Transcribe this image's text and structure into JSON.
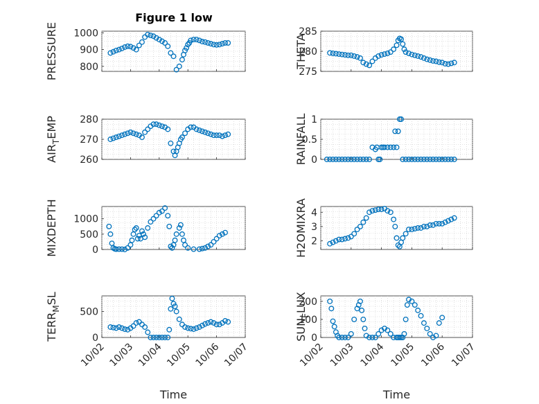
{
  "figure": {
    "title": "Figure 1 low"
  },
  "chart_data": [
    {
      "type": "scatter",
      "panel": "PRESSURE",
      "ylabel": "PRESSURE",
      "ylim": [
        770,
        1010
      ],
      "yticks": [
        800,
        900,
        1000
      ],
      "xlim": [
        0,
        5
      ],
      "xticks": [
        "10/02",
        "10/03",
        "10/04",
        "10/05",
        "10/06",
        "10/07"
      ],
      "xlabel": "",
      "grid": true,
      "x": [
        0.3,
        0.4,
        0.5,
        0.6,
        0.7,
        0.8,
        0.9,
        1.0,
        1.1,
        1.2,
        1.3,
        1.4,
        1.5,
        1.6,
        1.7,
        1.8,
        1.9,
        2.0,
        2.1,
        2.2,
        2.3,
        2.4,
        2.5,
        2.6,
        2.7,
        2.8,
        2.85,
        2.9,
        2.95,
        3.0,
        3.05,
        3.1,
        3.2,
        3.3,
        3.4,
        3.5,
        3.6,
        3.7,
        3.8,
        3.9,
        4.0,
        4.1,
        4.2,
        4.3,
        4.4
      ],
      "y": [
        880,
        887,
        895,
        900,
        907,
        915,
        920,
        918,
        910,
        900,
        925,
        945,
        975,
        990,
        985,
        980,
        970,
        960,
        950,
        940,
        920,
        880,
        860,
        780,
        800,
        840,
        870,
        895,
        910,
        930,
        940,
        955,
        960,
        960,
        955,
        948,
        945,
        940,
        935,
        930,
        928,
        930,
        935,
        940,
        940
      ]
    },
    {
      "type": "scatter",
      "panel": "THETA",
      "ylabel": "THETA",
      "ylim": [
        275,
        285
      ],
      "yticks": [
        275,
        280,
        285
      ],
      "xlim": [
        0,
        5
      ],
      "xticks": [
        "10/02",
        "10/03",
        "10/04",
        "10/05",
        "10/06",
        "10/07"
      ],
      "xlabel": "",
      "grid": true,
      "x": [
        0.3,
        0.4,
        0.5,
        0.6,
        0.7,
        0.8,
        0.9,
        1.0,
        1.1,
        1.2,
        1.3,
        1.4,
        1.5,
        1.6,
        1.7,
        1.8,
        1.9,
        2.0,
        2.1,
        2.2,
        2.3,
        2.4,
        2.5,
        2.55,
        2.6,
        2.65,
        2.7,
        2.75,
        2.8,
        2.9,
        3.0,
        3.1,
        3.2,
        3.3,
        3.4,
        3.5,
        3.6,
        3.7,
        3.8,
        3.9,
        4.0,
        4.1,
        4.2,
        4.3,
        4.4
      ],
      "y": [
        279.6,
        279.5,
        279.4,
        279.3,
        279.2,
        279.1,
        279.0,
        279.0,
        278.8,
        278.6,
        278.3,
        277.2,
        276.8,
        276.5,
        277.5,
        278.3,
        278.8,
        279.1,
        279.3,
        279.5,
        279.8,
        280.5,
        281.5,
        282.7,
        283.2,
        283.0,
        281.8,
        280.5,
        279.8,
        279.5,
        279.2,
        279.0,
        278.8,
        278.6,
        278.3,
        278.0,
        277.8,
        277.6,
        277.5,
        277.3,
        277.2,
        276.9,
        276.8,
        277.0,
        277.2
      ]
    },
    {
      "type": "scatter",
      "panel": "AIR_TEMP",
      "ylabel": "AIR_TEMP",
      "ylim": [
        260,
        280
      ],
      "yticks": [
        260,
        270,
        280
      ],
      "xlim": [
        0,
        5
      ],
      "xticks": [
        "10/02",
        "10/03",
        "10/04",
        "10/05",
        "10/06",
        "10/07"
      ],
      "xlabel": "",
      "grid": true,
      "x": [
        0.3,
        0.4,
        0.5,
        0.6,
        0.7,
        0.8,
        0.9,
        1.0,
        1.1,
        1.2,
        1.3,
        1.4,
        1.5,
        1.6,
        1.7,
        1.8,
        1.9,
        2.0,
        2.1,
        2.2,
        2.3,
        2.4,
        2.5,
        2.55,
        2.6,
        2.65,
        2.7,
        2.75,
        2.8,
        2.9,
        3.0,
        3.1,
        3.2,
        3.3,
        3.4,
        3.5,
        3.6,
        3.7,
        3.8,
        3.9,
        4.0,
        4.1,
        4.2,
        4.3,
        4.4
      ],
      "y": [
        270,
        270.5,
        271,
        271.5,
        272,
        272.5,
        273,
        273.5,
        273,
        272.5,
        272,
        271,
        273.5,
        275,
        276.5,
        277.5,
        277.5,
        277,
        276.5,
        276,
        275,
        268,
        264,
        262,
        264,
        266,
        268,
        270,
        271,
        273,
        275,
        276,
        276,
        275,
        274.5,
        274,
        273.5,
        273,
        272.5,
        272,
        272,
        272,
        271.5,
        272,
        272.5
      ]
    },
    {
      "type": "scatter",
      "panel": "RAINFALL",
      "ylabel": "RAINFALL",
      "ylim": [
        0,
        1
      ],
      "yticks": [
        0,
        0.5,
        1
      ],
      "xlim": [
        0,
        5
      ],
      "xticks": [
        "10/02",
        "10/03",
        "10/04",
        "10/05",
        "10/06",
        "10/07"
      ],
      "xlabel": "",
      "grid": true,
      "x": [
        0.2,
        0.3,
        0.4,
        0.5,
        0.6,
        0.7,
        0.8,
        0.9,
        1.0,
        1.1,
        1.2,
        1.3,
        1.4,
        1.5,
        1.6,
        1.7,
        1.8,
        1.85,
        1.9,
        1.95,
        2.0,
        2.05,
        2.1,
        2.2,
        2.3,
        2.4,
        2.45,
        2.5,
        2.55,
        2.6,
        2.65,
        2.7,
        2.8,
        2.9,
        3.0,
        3.1,
        3.2,
        3.3,
        3.4,
        3.5,
        3.6,
        3.7,
        3.8,
        3.9,
        4.0,
        4.1,
        4.2,
        4.3,
        4.4
      ],
      "y": [
        0,
        0,
        0,
        0,
        0,
        0,
        0,
        0,
        0,
        0,
        0,
        0,
        0,
        0,
        0,
        0.3,
        0.25,
        0.3,
        0,
        0,
        0.3,
        0.3,
        0.3,
        0.3,
        0.3,
        0.3,
        0.7,
        0.3,
        0.7,
        1.0,
        1.0,
        0,
        0,
        0,
        0,
        0,
        0,
        0,
        0,
        0,
        0,
        0,
        0,
        0,
        0,
        0,
        0,
        0,
        0
      ]
    },
    {
      "type": "scatter",
      "panel": "MIXDEPTH",
      "ylabel": "MIXDEPTH",
      "ylim": [
        0,
        1400
      ],
      "yticks": [
        0,
        500,
        1000
      ],
      "xlim": [
        0,
        5
      ],
      "xticks": [
        "10/02",
        "10/03",
        "10/04",
        "10/05",
        "10/06",
        "10/07"
      ],
      "xlabel": "",
      "grid": true,
      "x": [
        0.25,
        0.3,
        0.35,
        0.4,
        0.45,
        0.5,
        0.6,
        0.7,
        0.8,
        0.9,
        1.0,
        1.05,
        1.1,
        1.15,
        1.2,
        1.25,
        1.3,
        1.35,
        1.4,
        1.45,
        1.5,
        1.6,
        1.7,
        1.8,
        1.9,
        2.0,
        2.1,
        2.2,
        2.3,
        2.35,
        2.4,
        2.45,
        2.5,
        2.55,
        2.6,
        2.7,
        2.75,
        2.8,
        2.85,
        2.9,
        3.0,
        3.2,
        3.4,
        3.5,
        3.6,
        3.7,
        3.8,
        3.9,
        4.0,
        4.1,
        4.2,
        4.3
      ],
      "y": [
        750,
        500,
        200,
        50,
        20,
        10,
        10,
        10,
        0,
        50,
        150,
        300,
        500,
        650,
        700,
        350,
        450,
        350,
        600,
        500,
        400,
        700,
        900,
        1000,
        1100,
        1200,
        1250,
        1350,
        1100,
        750,
        100,
        50,
        150,
        300,
        500,
        700,
        800,
        500,
        300,
        150,
        50,
        10,
        10,
        30,
        50,
        100,
        150,
        250,
        350,
        450,
        500,
        550
      ]
    },
    {
      "type": "scatter",
      "panel": "H2OMIXRA",
      "ylabel": "H2OMIXRA",
      "ylim": [
        1.4,
        4.4
      ],
      "yticks": [
        2,
        3,
        4
      ],
      "xlim": [
        0,
        5
      ],
      "xticks": [
        "10/02",
        "10/03",
        "10/04",
        "10/05",
        "10/06",
        "10/07"
      ],
      "xlabel": "",
      "grid": true,
      "x": [
        0.3,
        0.4,
        0.5,
        0.6,
        0.7,
        0.8,
        0.9,
        1.0,
        1.1,
        1.2,
        1.3,
        1.4,
        1.5,
        1.6,
        1.7,
        1.8,
        1.9,
        2.0,
        2.1,
        2.2,
        2.3,
        2.4,
        2.45,
        2.5,
        2.55,
        2.6,
        2.65,
        2.7,
        2.8,
        2.9,
        3.0,
        3.1,
        3.2,
        3.3,
        3.4,
        3.5,
        3.6,
        3.7,
        3.8,
        3.9,
        4.0,
        4.1,
        4.2,
        4.3,
        4.4
      ],
      "y": [
        1.8,
        1.9,
        2.0,
        2.1,
        2.1,
        2.15,
        2.2,
        2.3,
        2.5,
        2.8,
        3.0,
        3.3,
        3.6,
        4.0,
        4.1,
        4.15,
        4.2,
        4.2,
        4.25,
        4.1,
        4.0,
        3.5,
        3.0,
        2.2,
        1.7,
        1.6,
        1.9,
        2.2,
        2.5,
        2.8,
        2.8,
        2.85,
        2.9,
        2.9,
        3.0,
        3.0,
        3.1,
        3.1,
        3.2,
        3.2,
        3.2,
        3.3,
        3.4,
        3.5,
        3.6
      ]
    },
    {
      "type": "scatter",
      "panel": "TERR_MSL",
      "ylabel": "TERR_MSL",
      "ylim": [
        0,
        800
      ],
      "yticks": [
        0,
        500
      ],
      "xlim": [
        0,
        5
      ],
      "xticks": [
        "10/02",
        "10/03",
        "10/04",
        "10/05",
        "10/06",
        "10/07"
      ],
      "xlabel": "Time",
      "grid": true,
      "x": [
        0.3,
        0.4,
        0.5,
        0.6,
        0.7,
        0.8,
        0.9,
        1.0,
        1.1,
        1.2,
        1.3,
        1.4,
        1.5,
        1.6,
        1.7,
        1.8,
        1.9,
        2.0,
        2.1,
        2.2,
        2.3,
        2.35,
        2.4,
        2.45,
        2.5,
        2.55,
        2.6,
        2.7,
        2.8,
        2.9,
        3.0,
        3.1,
        3.2,
        3.3,
        3.4,
        3.5,
        3.6,
        3.7,
        3.8,
        3.9,
        4.0,
        4.1,
        4.2,
        4.3,
        4.4
      ],
      "y": [
        200,
        190,
        180,
        200,
        180,
        160,
        150,
        180,
        220,
        280,
        300,
        250,
        200,
        100,
        0,
        0,
        0,
        0,
        0,
        0,
        0,
        150,
        550,
        750,
        650,
        600,
        500,
        350,
        250,
        200,
        180,
        170,
        160,
        180,
        200,
        230,
        260,
        280,
        300,
        280,
        250,
        250,
        280,
        320,
        300
      ]
    },
    {
      "type": "scatter",
      "panel": "SUN_FLUX",
      "ylabel": "SUN_FLUX",
      "ylim": [
        0,
        230
      ],
      "yticks": [
        0,
        100,
        200
      ],
      "xlim": [
        0,
        5
      ],
      "xticks": [
        "10/02",
        "10/03",
        "10/04",
        "10/05",
        "10/06",
        "10/07"
      ],
      "xlabel": "Time",
      "grid": true,
      "x": [
        0.3,
        0.35,
        0.4,
        0.45,
        0.5,
        0.55,
        0.6,
        0.7,
        0.8,
        0.9,
        1.0,
        1.1,
        1.2,
        1.25,
        1.3,
        1.35,
        1.4,
        1.45,
        1.5,
        1.6,
        1.7,
        1.8,
        1.9,
        2.0,
        2.1,
        2.2,
        2.3,
        2.4,
        2.5,
        2.55,
        2.6,
        2.65,
        2.7,
        2.75,
        2.8,
        2.85,
        2.9,
        3.0,
        3.1,
        3.2,
        3.3,
        3.4,
        3.5,
        3.6,
        3.7,
        3.8,
        3.9,
        4.0
      ],
      "y": [
        200,
        160,
        90,
        60,
        30,
        10,
        0,
        0,
        0,
        0,
        20,
        100,
        160,
        180,
        200,
        150,
        100,
        50,
        10,
        0,
        0,
        0,
        20,
        40,
        50,
        40,
        20,
        0,
        0,
        0,
        0,
        0,
        0,
        20,
        100,
        180,
        210,
        200,
        180,
        150,
        120,
        80,
        50,
        20,
        0,
        10,
        80,
        110
      ]
    }
  ]
}
